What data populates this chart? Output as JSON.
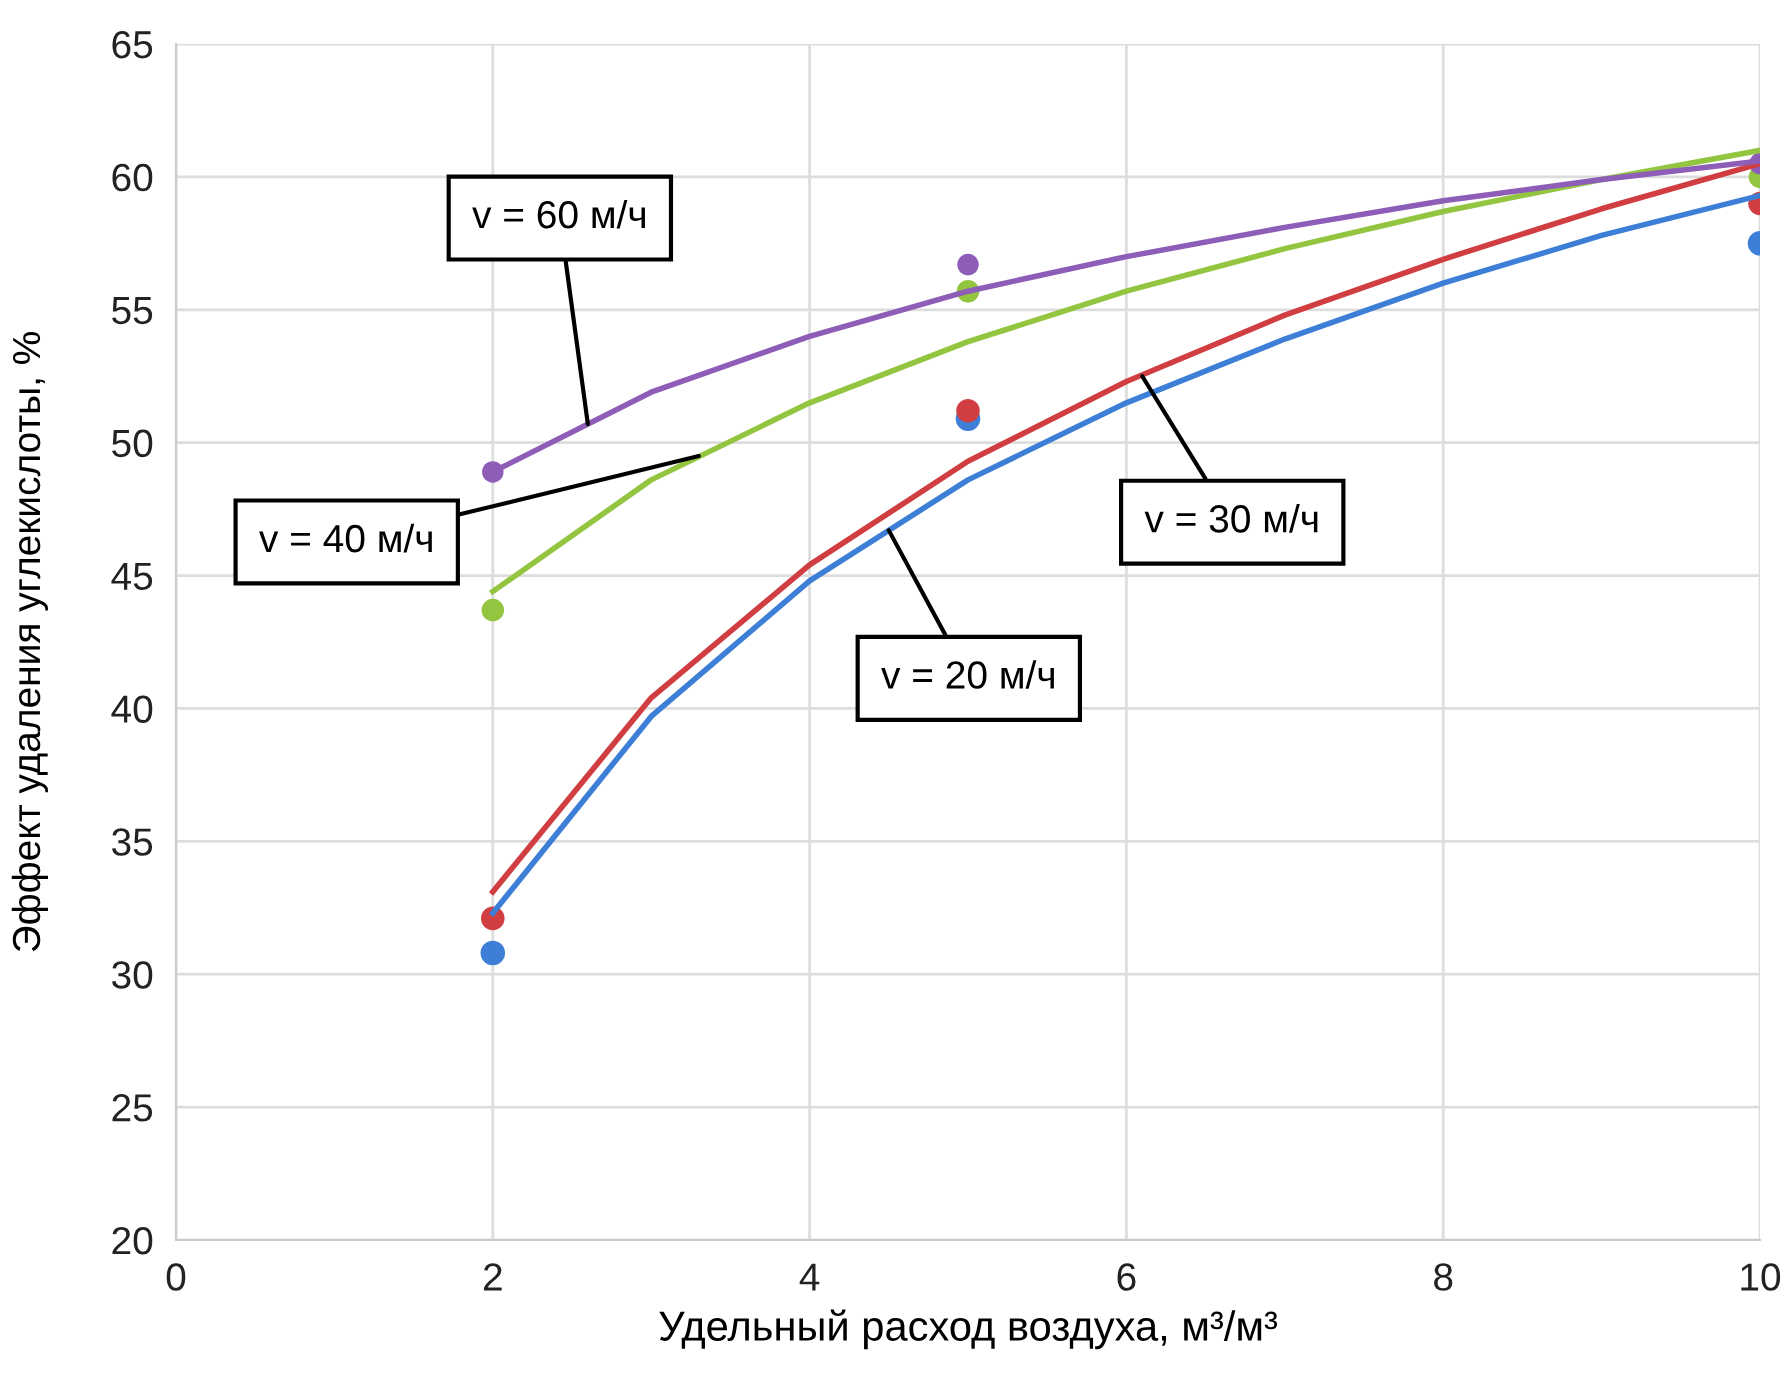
{
  "chart_data": {
    "type": "scatter",
    "xlabel": "Удельный расход воздуха, м³/м³",
    "ylabel": "Эффект удаления углекислоты, %",
    "xlim": [
      0,
      10
    ],
    "xticks": [
      0,
      2,
      4,
      6,
      8,
      10
    ],
    "ylim": [
      20,
      65
    ],
    "yticks": [
      20,
      25,
      30,
      35,
      40,
      45,
      50,
      55,
      60,
      65
    ],
    "grid": true,
    "series": [
      {
        "marker": "circle",
        "color": "#3d7fd6",
        "x": [
          2,
          5,
          10
        ],
        "values": [
          30.8,
          50.9,
          57.5
        ]
      },
      {
        "marker": "circle",
        "color": "#d03e41",
        "x": [
          2,
          5,
          10
        ],
        "values": [
          32.1,
          51.2,
          59.0
        ]
      },
      {
        "marker": "circle",
        "color": "#93c540",
        "x": [
          2,
          5,
          10
        ],
        "values": [
          43.7,
          55.7,
          60.0
        ]
      },
      {
        "marker": "circle",
        "color": "#8d5db8",
        "x": [
          2,
          5,
          10
        ],
        "values": [
          48.9,
          56.7,
          60.5
        ]
      },
      {
        "type": "line",
        "color": "#3d7fd6",
        "x": [
          2,
          3,
          4,
          5,
          6,
          7,
          8,
          9,
          10
        ],
        "values": [
          32.3,
          39.7,
          44.8,
          48.6,
          51.5,
          53.9,
          56.0,
          57.8,
          59.3
        ]
      },
      {
        "type": "line",
        "color": "#d03e41",
        "x": [
          2,
          3,
          4,
          5,
          6,
          7,
          8,
          9,
          10
        ],
        "values": [
          33.1,
          40.4,
          45.4,
          49.3,
          52.3,
          54.8,
          56.9,
          58.8,
          60.5
        ]
      },
      {
        "type": "line",
        "color": "#93c540",
        "x": [
          2,
          3,
          4,
          5,
          6,
          7,
          8,
          9,
          10
        ],
        "values": [
          44.4,
          48.6,
          51.5,
          53.8,
          55.7,
          57.3,
          58.7,
          59.9,
          61.0
        ]
      },
      {
        "type": "line",
        "color": "#8d5db8",
        "x": [
          2,
          3,
          4,
          5,
          6,
          7,
          8,
          9,
          10
        ],
        "values": [
          48.9,
          51.9,
          54.0,
          55.7,
          57.0,
          58.1,
          59.1,
          59.9,
          60.6
        ]
      }
    ],
    "annotations": [
      {
        "text": "v = 60 м/ч",
        "x": 2.6,
        "y": 50.7
      },
      {
        "text": "v = 40 м/ч",
        "x": 3.3,
        "y": 49.5
      },
      {
        "text": "v = 30 м/ч",
        "x": 6.1,
        "y": 52.5
      },
      {
        "text": "v = 20 м/ч",
        "x": 4.5,
        "y": 46.7
      }
    ]
  }
}
